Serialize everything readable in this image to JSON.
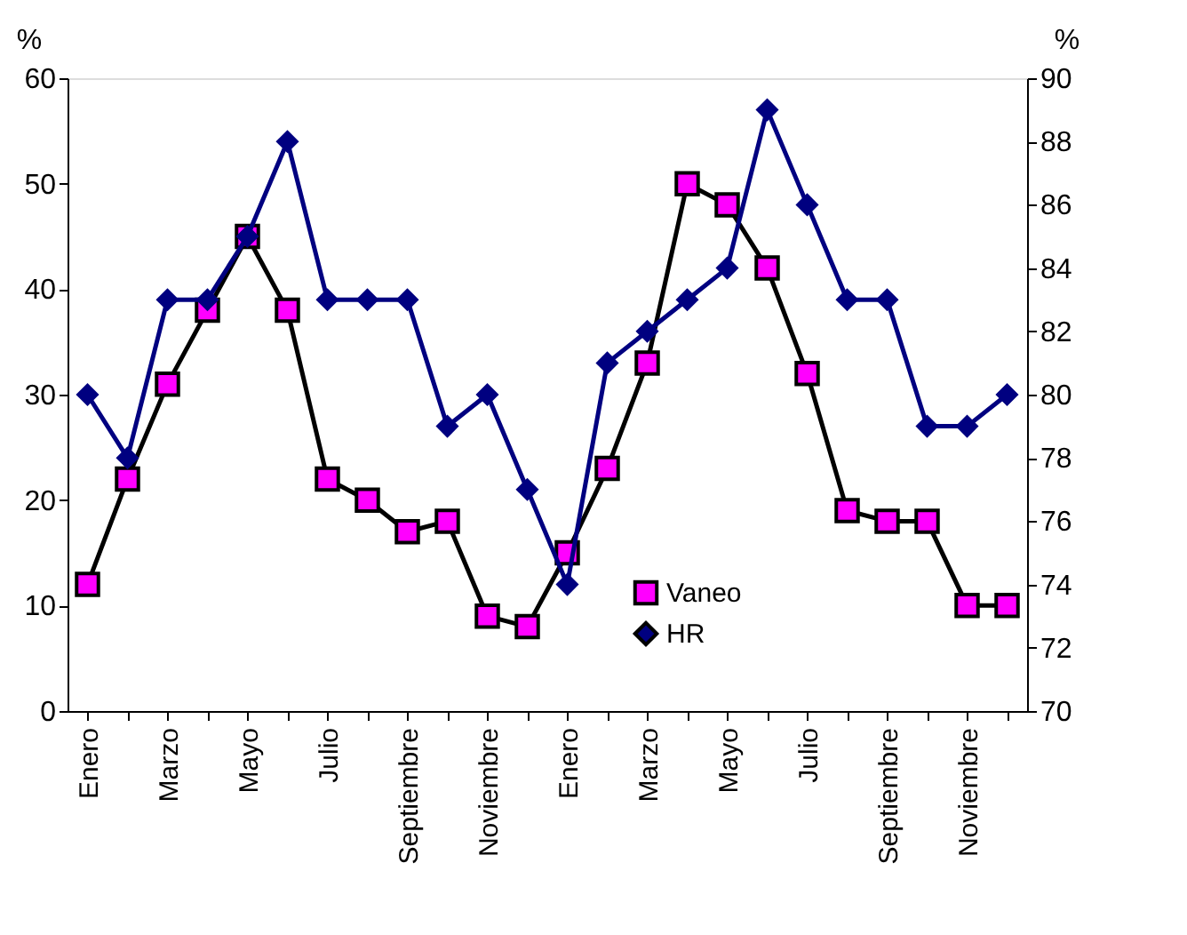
{
  "chart_data": {
    "type": "line",
    "ylabel": "%",
    "y2label": "%",
    "categories": [
      "Enero",
      null,
      "Marzo",
      null,
      "Mayo",
      null,
      "Julio",
      null,
      "Septiembre",
      null,
      "Noviembre",
      null,
      "Enero",
      null,
      "Marzo",
      null,
      "Mayo",
      null,
      "Julio",
      null,
      "Septiembre",
      null,
      "Noviembre",
      null
    ],
    "series": [
      {
        "name": "Vaneo",
        "color": "#ff00ff",
        "marker": "square",
        "values": [
          12,
          22,
          31,
          38,
          45,
          38,
          22,
          20,
          17,
          18,
          9,
          8,
          15,
          23,
          33,
          50,
          48,
          42,
          32,
          19,
          18,
          18,
          10,
          10
        ]
      },
      {
        "name": "HR",
        "color": "#000080",
        "marker": "diamond",
        "axis": "y2",
        "values": [
          80,
          78,
          83,
          83,
          85,
          88,
          83,
          83,
          83,
          79,
          80,
          77,
          74,
          81,
          82,
          83,
          84,
          89,
          86,
          83,
          83,
          79,
          79,
          80
        ]
      }
    ],
    "ylim": [
      0,
      60
    ],
    "yticks": [
      0,
      10,
      20,
      30,
      40,
      50,
      60
    ],
    "y2lim": [
      70,
      90
    ],
    "y2ticks": [
      70,
      72,
      74,
      76,
      78,
      80,
      82,
      84,
      86,
      88,
      90
    ],
    "grid": false,
    "legend": "bottom right",
    "line_style": "solid"
  }
}
